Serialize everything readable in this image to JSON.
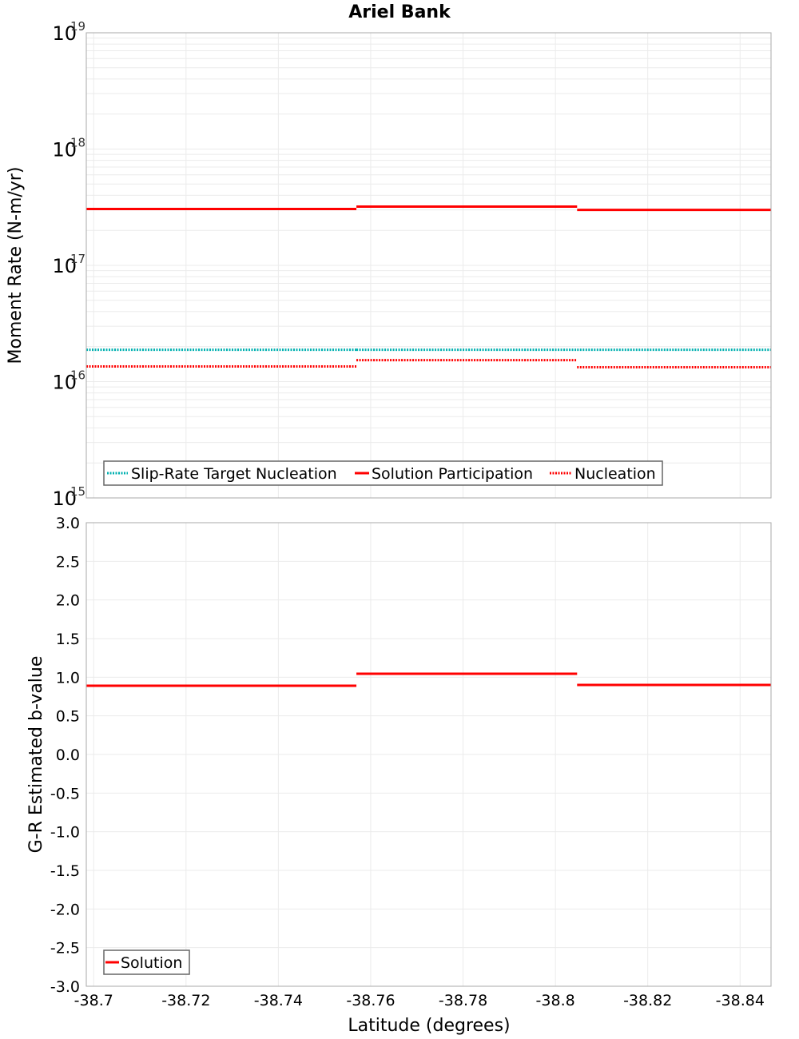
{
  "title": "Ariel Bank",
  "colors": {
    "solution": "#ff0000",
    "target": "#00b0b0",
    "grid": "#ebebeb",
    "frame": "#aaaaaa"
  },
  "chart_data": [
    {
      "type": "line",
      "title": "Ariel Bank",
      "xlabel": "Latitude (degrees)",
      "ylabel": "Moment Rate (N-m/yr)",
      "yscale": "log",
      "ylim": [
        1000000000000000.0,
        1e+19
      ],
      "xlim": [
        -38.6984,
        -38.8467
      ],
      "ytick_labels": [
        "10^15",
        "10^16",
        "10^17",
        "10^18",
        "10^19"
      ],
      "legend_position": "bottom-left",
      "series": [
        {
          "name": "Slip-Rate Target Nucleation",
          "style": "dotted",
          "color": "#00b0b0",
          "segments": [
            {
              "x": [
                -38.6984,
                -38.7569
              ],
              "y": 1.88e+16
            },
            {
              "x": [
                -38.7569,
                -38.8047
              ],
              "y": 1.88e+16
            },
            {
              "x": [
                -38.8047,
                -38.8467
              ],
              "y": 1.88e+16
            }
          ]
        },
        {
          "name": "Solution Participation",
          "style": "solid",
          "color": "#ff0000",
          "segments": [
            {
              "x": [
                -38.6984,
                -38.7569
              ],
              "y": 3.05e+17
            },
            {
              "x": [
                -38.7569,
                -38.8047
              ],
              "y": 3.2e+17
            },
            {
              "x": [
                -38.8047,
                -38.8467
              ],
              "y": 3e+17
            }
          ]
        },
        {
          "name": "Nucleation",
          "style": "dotted",
          "color": "#ff0000",
          "segments": [
            {
              "x": [
                -38.6984,
                -38.7569
              ],
              "y": 1.35e+16
            },
            {
              "x": [
                -38.7569,
                -38.8047
              ],
              "y": 1.53e+16
            },
            {
              "x": [
                -38.8047,
                -38.8467
              ],
              "y": 1.33e+16
            }
          ]
        }
      ]
    },
    {
      "type": "line",
      "xlabel": "Latitude (degrees)",
      "ylabel": "G-R Estimated b-value",
      "ylim": [
        -3.0,
        3.0
      ],
      "xlim": [
        -38.6984,
        -38.8467
      ],
      "ytick_labels": [
        "3.0",
        "2.5",
        "2.0",
        "1.5",
        "1.0",
        "0.5",
        "0.0",
        "-0.5",
        "-1.0",
        "-1.5",
        "-2.0",
        "-2.5",
        "-3.0"
      ],
      "xtick_labels": [
        "-38.7",
        "-38.72",
        "-38.74",
        "-38.76",
        "-38.78",
        "-38.8",
        "-38.82",
        "-38.84"
      ],
      "legend_position": "bottom-left",
      "series": [
        {
          "name": "Solution",
          "style": "solid",
          "color": "#ff0000",
          "segments": [
            {
              "x": [
                -38.6984,
                -38.7569
              ],
              "y": 0.89
            },
            {
              "x": [
                -38.7569,
                -38.8047
              ],
              "y": 1.045
            },
            {
              "x": [
                -38.8047,
                -38.8467
              ],
              "y": 0.9
            }
          ]
        }
      ]
    }
  ]
}
